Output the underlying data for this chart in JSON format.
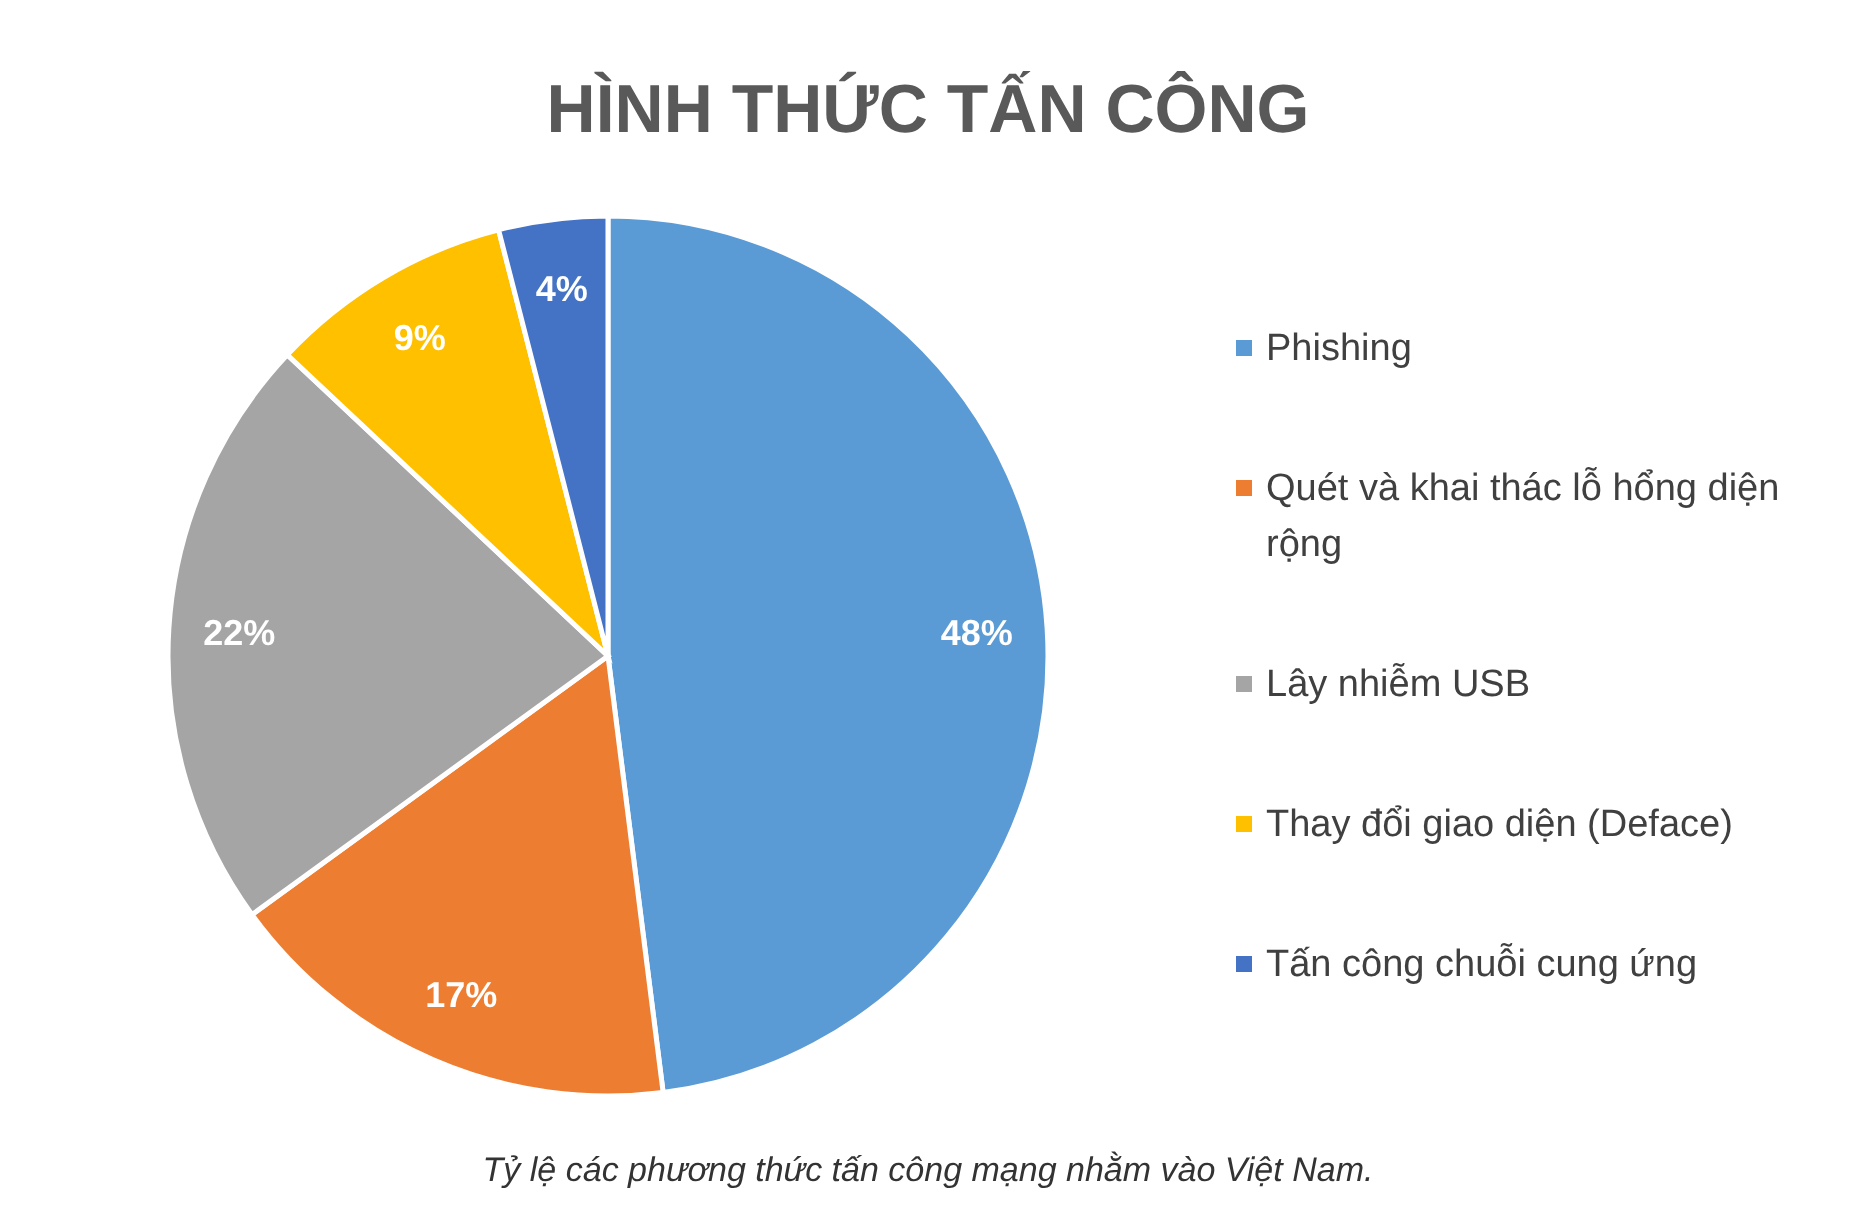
{
  "chart_data": {
    "type": "pie",
    "title": "HÌNH THỨC TẤN CÔNG",
    "categories": [
      "Phishing",
      "Quét và khai thác lỗ hổng diện rộng",
      "Lây nhiễm USB",
      "Thay đổi giao diện (Deface)",
      "Tấn công chuỗi cung ứng"
    ],
    "values": [
      48,
      17,
      22,
      9,
      4
    ],
    "colors": [
      "#5b9bd5",
      "#ed7d31",
      "#a5a5a5",
      "#ffc000",
      "#4472c4"
    ],
    "value_labels": [
      "48%",
      "17%",
      "22%",
      "9%",
      "4%"
    ],
    "legend": "right",
    "annotations": [
      "Tỷ lệ các phương thức tấn công mạng nhằm vào Việt Nam."
    ]
  }
}
